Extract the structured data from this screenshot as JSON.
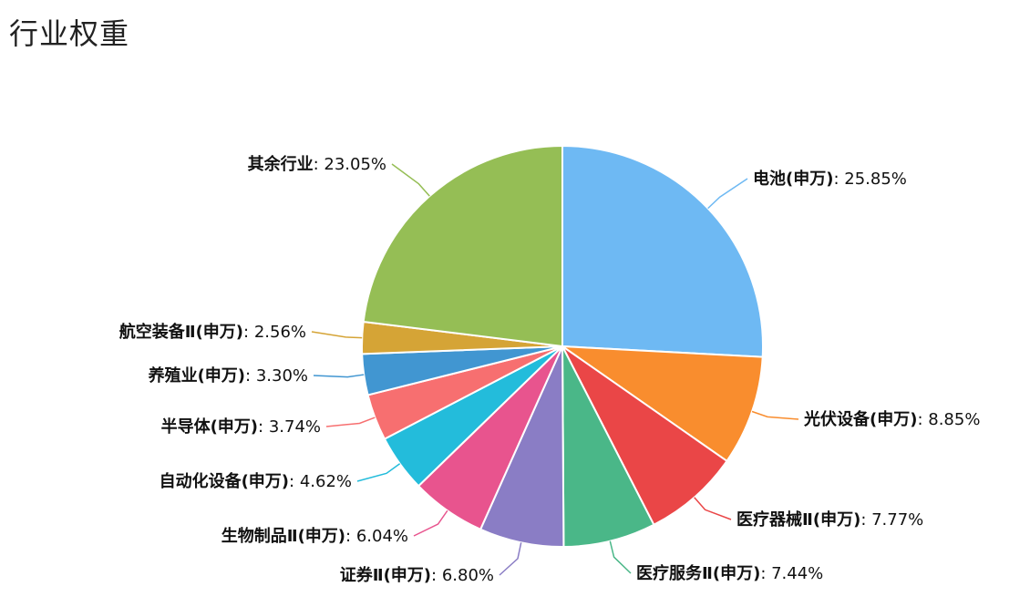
{
  "title": "行业权重",
  "chart_data": {
    "type": "pie",
    "title": "行业权重",
    "slices": [
      {
        "name": "电池(申万)",
        "value": 25.85,
        "label": "25.85%",
        "color": "#6EB9F3"
      },
      {
        "name": "光伏设备(申万)",
        "value": 8.85,
        "label": "8.85%",
        "color": "#F98D2E"
      },
      {
        "name": "医疗器械Ⅱ(申万)",
        "value": 7.77,
        "label": "7.77%",
        "color": "#EA4647"
      },
      {
        "name": "医疗服务Ⅱ(申万)",
        "value": 7.44,
        "label": "7.44%",
        "color": "#4AB788"
      },
      {
        "name": "证券Ⅱ(申万)",
        "value": 6.8,
        "label": "6.80%",
        "color": "#8A7DC5"
      },
      {
        "name": "生物制品Ⅱ(申万)",
        "value": 6.04,
        "label": "6.04%",
        "color": "#E8548E"
      },
      {
        "name": "自动化设备(申万)",
        "value": 4.62,
        "label": "4.62%",
        "color": "#23BCDB"
      },
      {
        "name": "半导体(申万)",
        "value": 3.74,
        "label": "3.74%",
        "color": "#F76F70"
      },
      {
        "name": "养殖业(申万)",
        "value": 3.3,
        "label": "3.30%",
        "color": "#4196D1"
      },
      {
        "name": "航空装备Ⅱ(申万)",
        "value": 2.56,
        "label": "2.56%",
        "color": "#D5A436"
      },
      {
        "name": "其余行业",
        "value": 23.05,
        "label": "23.05%",
        "color": "#95BE55"
      }
    ]
  }
}
